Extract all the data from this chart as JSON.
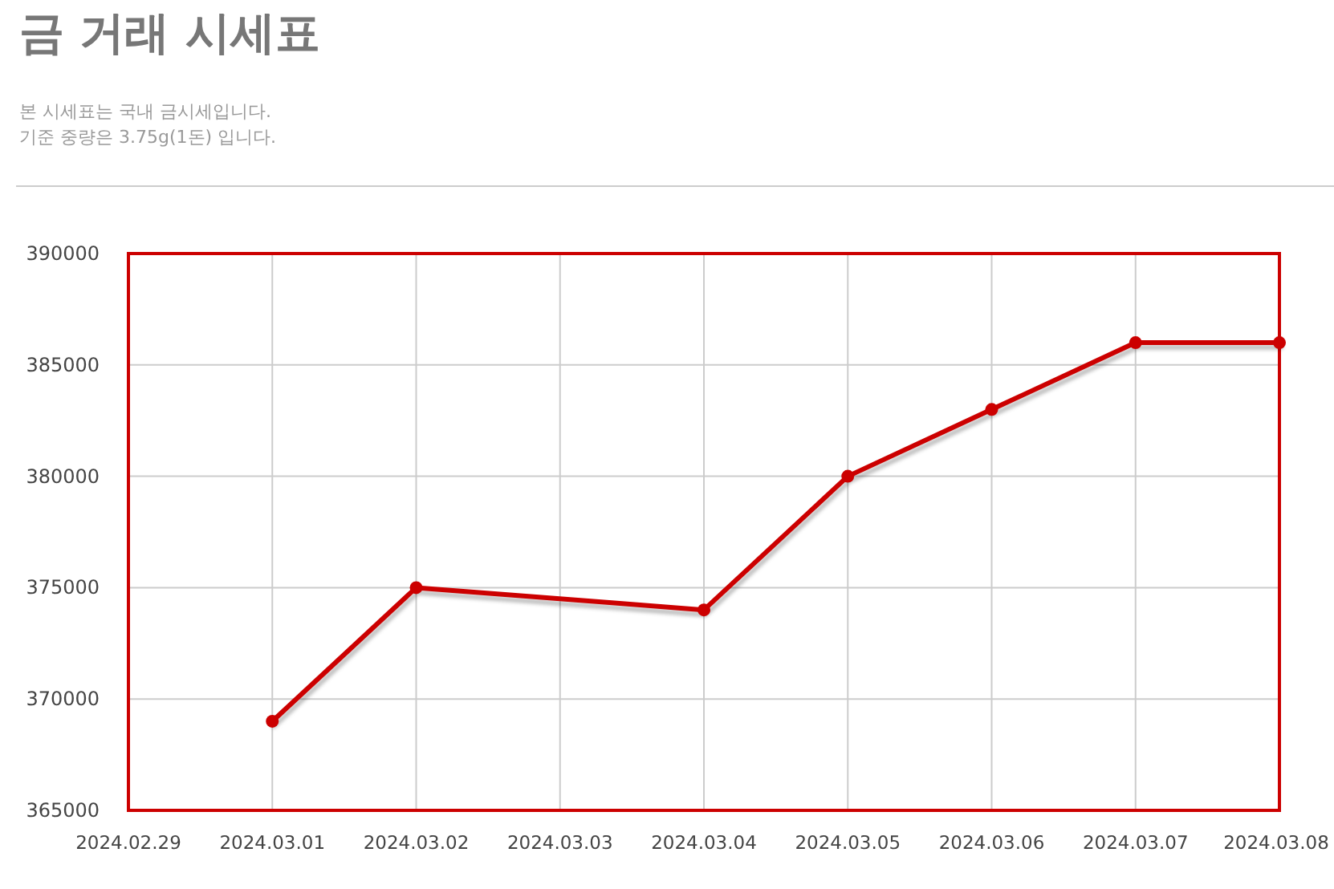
{
  "chart_data": {
    "type": "line",
    "title": "금 거래 시세표",
    "subtitle": "본 시세표는 국내 금시세입니다.\n기준 중량은 3.75g(1돈) 입니다.",
    "x": [
      "2024-03-01",
      "2024-03-02",
      "2024-03-04",
      "2024-03-05",
      "2024-03-06",
      "2024-03-07",
      "2024-03-08"
    ],
    "series": [
      {
        "color": "#cc0000",
        "values": [
          369000,
          375000,
          374000,
          380000,
          383000,
          386000,
          386000
        ]
      }
    ],
    "xlim": [
      "2024-02-29",
      "2024-03-08"
    ],
    "xticks": [
      {
        "value": "2024-02-29",
        "label": "2024.02.29"
      },
      {
        "value": "2024-03-01",
        "label": "2024.03.01"
      },
      {
        "value": "2024-03-02",
        "label": "2024.03.02"
      },
      {
        "value": "2024-03-03",
        "label": "2024.03.03"
      },
      {
        "value": "2024-03-04",
        "label": "2024.03.04"
      },
      {
        "value": "2024-03-05",
        "label": "2024.03.05"
      },
      {
        "value": "2024-03-06",
        "label": "2024.03.06"
      },
      {
        "value": "2024-03-07",
        "label": "2024.03.07"
      },
      {
        "value": "2024-03-08",
        "label": "2024.03.08"
      }
    ],
    "ylim": [
      365000,
      390000
    ],
    "yticks": [
      365000,
      370000,
      375000,
      380000,
      385000,
      390000
    ],
    "grid": true,
    "marker": "circle",
    "line_style": "solid"
  }
}
